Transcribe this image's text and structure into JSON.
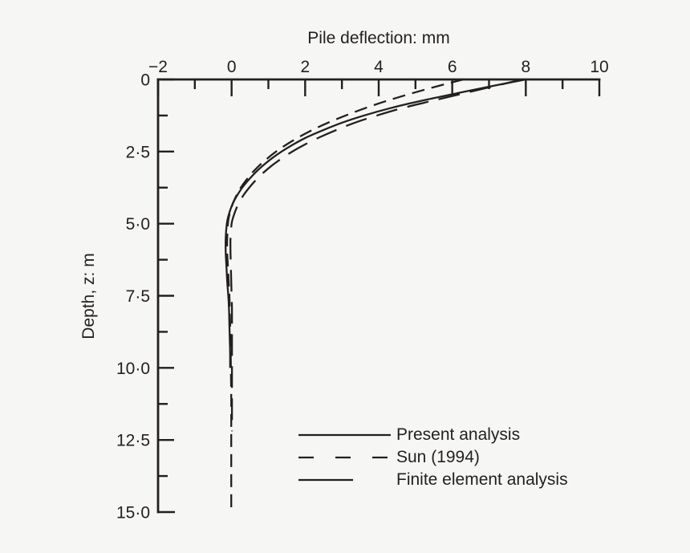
{
  "figure": {
    "background_color": "#f6f6f4",
    "ink_color": "#231f20"
  },
  "chart_data": {
    "type": "line",
    "title": "Pile deflection: mm",
    "xlabel": "Pile deflection: mm",
    "ylabel": "Depth, z: m",
    "grid": false,
    "x_axis": {
      "side": "top",
      "min": -2,
      "max": 10,
      "major_ticks": [
        -2,
        0,
        2,
        4,
        6,
        8,
        10
      ],
      "major_tick_labels": [
        "−2",
        "0",
        "2",
        "4",
        "6",
        "8",
        "10"
      ],
      "minor_ticks": [
        -1,
        1,
        3,
        5,
        7,
        9
      ]
    },
    "y_axis": {
      "side": "left",
      "direction": "increasing-downward",
      "min": 0,
      "max": 15,
      "major_ticks": [
        0,
        2.5,
        5,
        7.5,
        10,
        12.5,
        15
      ],
      "major_tick_labels": [
        "0",
        "2·5",
        "5·0",
        "7·5",
        "10·0",
        "12·5",
        "15·0"
      ],
      "minor_ticks": [
        1.25,
        3.75,
        6.25,
        8.75,
        11.25,
        13.75
      ]
    },
    "series": [
      {
        "name": "Present analysis",
        "id": "present-analysis",
        "line_style": "solid",
        "dash_pattern": null,
        "points_depth_m_deflection_mm": [
          [
            0,
            8.0
          ],
          [
            0.25,
            7.0
          ],
          [
            0.5,
            6.05
          ],
          [
            0.75,
            5.12
          ],
          [
            1.0,
            4.3
          ],
          [
            1.25,
            3.6
          ],
          [
            1.5,
            3.0
          ],
          [
            1.75,
            2.5
          ],
          [
            2.0,
            2.05
          ],
          [
            2.25,
            1.68
          ],
          [
            2.5,
            1.36
          ],
          [
            2.75,
            1.08
          ],
          [
            3.0,
            0.84
          ],
          [
            3.25,
            0.63
          ],
          [
            3.5,
            0.45
          ],
          [
            3.75,
            0.29
          ],
          [
            4.0,
            0.16
          ],
          [
            4.25,
            0.05
          ],
          [
            4.5,
            -0.03
          ],
          [
            4.75,
            -0.09
          ],
          [
            5.0,
            -0.13
          ],
          [
            5.5,
            -0.16
          ],
          [
            6.0,
            -0.16
          ],
          [
            6.5,
            -0.14
          ],
          [
            7.0,
            -0.12
          ],
          [
            7.5,
            -0.09
          ],
          [
            8.0,
            -0.07
          ],
          [
            8.5,
            -0.06
          ],
          [
            9.0,
            -0.05
          ],
          [
            9.5,
            -0.04
          ],
          [
            10.0,
            -0.04
          ]
        ]
      },
      {
        "name": "Sun (1994)",
        "id": "sun-1994",
        "line_style": "dashed",
        "dash_pattern": [
          16,
          9
        ],
        "points_depth_m_deflection_mm": [
          [
            0,
            6.3
          ],
          [
            0.25,
            5.55
          ],
          [
            0.5,
            4.85
          ],
          [
            0.75,
            4.2
          ],
          [
            1.0,
            3.62
          ],
          [
            1.25,
            3.1
          ],
          [
            1.5,
            2.62
          ],
          [
            1.75,
            2.2
          ],
          [
            2.0,
            1.83
          ],
          [
            2.25,
            1.5
          ],
          [
            2.5,
            1.21
          ],
          [
            2.75,
            0.96
          ],
          [
            3.0,
            0.74
          ],
          [
            3.25,
            0.55
          ],
          [
            3.5,
            0.39
          ],
          [
            3.75,
            0.25
          ],
          [
            4.0,
            0.14
          ],
          [
            4.25,
            0.05
          ],
          [
            4.5,
            -0.02
          ],
          [
            4.75,
            -0.07
          ],
          [
            5.0,
            -0.1
          ],
          [
            5.5,
            -0.12
          ],
          [
            6.0,
            -0.12
          ],
          [
            6.5,
            -0.1
          ],
          [
            7.0,
            -0.08
          ],
          [
            7.5,
            -0.06
          ],
          [
            8.0,
            -0.05
          ],
          [
            9.0,
            -0.03
          ],
          [
            10.0,
            -0.02
          ],
          [
            11.0,
            -0.01
          ],
          [
            12.0,
            -0.01
          ],
          [
            13.0,
            -0.01
          ],
          [
            14.0,
            -0.01
          ],
          [
            15.0,
            -0.01
          ]
        ]
      },
      {
        "name": "Finite element analysis",
        "id": "finite-element-analysis",
        "line_style": "long-dash",
        "dash_pattern": [
          27,
          13
        ],
        "points_depth_m_deflection_mm": [
          [
            0,
            7.9
          ],
          [
            0.25,
            7.08
          ],
          [
            0.5,
            6.25
          ],
          [
            0.75,
            5.42
          ],
          [
            1.0,
            4.62
          ],
          [
            1.25,
            3.95
          ],
          [
            1.5,
            3.35
          ],
          [
            1.75,
            2.85
          ],
          [
            2.0,
            2.4
          ],
          [
            2.25,
            2.0
          ],
          [
            2.5,
            1.65
          ],
          [
            2.75,
            1.35
          ],
          [
            3.0,
            1.08
          ],
          [
            3.25,
            0.85
          ],
          [
            3.5,
            0.65
          ],
          [
            3.75,
            0.48
          ],
          [
            4.0,
            0.33
          ],
          [
            4.25,
            0.21
          ],
          [
            4.5,
            0.12
          ],
          [
            4.75,
            0.05
          ],
          [
            5.0,
            0.0
          ],
          [
            5.5,
            -0.03
          ],
          [
            6.0,
            -0.03
          ],
          [
            6.5,
            -0.02
          ],
          [
            7.0,
            -0.01
          ],
          [
            7.5,
            0.0
          ],
          [
            8.0,
            0.01
          ],
          [
            9.0,
            0.01
          ],
          [
            10.0,
            0.01
          ],
          [
            11.0,
            0.01
          ],
          [
            12.2,
            0.01
          ]
        ]
      }
    ],
    "legend": {
      "position": "inside-lower-center",
      "items": [
        {
          "label": "Present analysis",
          "sample_width": 115,
          "dash_pattern": null
        },
        {
          "label": "Sun (1994)",
          "sample_width": 111,
          "dash_pattern": [
            19,
            27
          ]
        },
        {
          "label": "Finite element analysis",
          "sample_width": 68,
          "dash_pattern": null
        }
      ]
    }
  }
}
